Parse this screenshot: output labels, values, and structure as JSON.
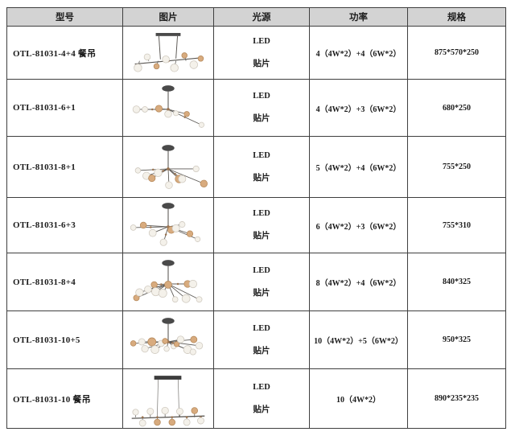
{
  "header": {
    "columns": [
      "型号",
      "图片",
      "光源",
      "功率",
      "规格"
    ]
  },
  "rows": [
    {
      "model": "OTL-81031-4+4 餐吊",
      "image": {
        "kind": "linear-top-bar",
        "globes": 8,
        "alt": "chandelier-linear-8-globes"
      },
      "light": [
        "LED",
        "贴片"
      ],
      "power": "4（4W*2）+4（6W*2）",
      "spec": "875*570*250"
    },
    {
      "model": "OTL-81031-6+1",
      "image": {
        "kind": "branch",
        "globes": 7,
        "seed": 2,
        "alt": "chandelier-branch-7-globes"
      },
      "light": [
        "LED",
        "贴片"
      ],
      "power": "4（4W*2）+3（6W*2）",
      "spec": "680*250"
    },
    {
      "model": "OTL-81031-8+1",
      "image": {
        "kind": "branch",
        "globes": 9,
        "seed": 5,
        "alt": "chandelier-branch-9-globes"
      },
      "light": [
        "LED",
        "贴片"
      ],
      "power": "5（4W*2）+4（6W*2）",
      "spec": "755*250"
    },
    {
      "model": "OTL-81031-6+3",
      "image": {
        "kind": "branch",
        "globes": 9,
        "seed": 9,
        "alt": "chandelier-branch-9-globes"
      },
      "light": [
        "LED",
        "贴片"
      ],
      "power": "6（4W*2）+3（6W*2）",
      "spec": "755*310"
    },
    {
      "model": "OTL-81031-8+4",
      "image": {
        "kind": "branch",
        "globes": 12,
        "seed": 4,
        "alt": "chandelier-branch-12-globes"
      },
      "light": [
        "LED",
        "贴片"
      ],
      "power": "8（4W*2）+4（6W*2）",
      "spec": "840*325"
    },
    {
      "model": "OTL-81031-10+5",
      "image": {
        "kind": "branch",
        "globes": 15,
        "seed": 7,
        "alt": "chandelier-branch-15-globes"
      },
      "light": [
        "LED",
        "贴片"
      ],
      "power": "10（4W*2）+5（6W*2）",
      "spec": "950*325"
    },
    {
      "model": "OTL-81031-10 餐吊",
      "image": {
        "kind": "linear-double-wire",
        "globes": 10,
        "alt": "chandelier-linear-10-globes"
      },
      "light": [
        "LED",
        "贴片"
      ],
      "power": "10（4W*2）",
      "spec": "890*235*235"
    }
  ],
  "colors": {
    "header_bg": "#d3d3d3",
    "border": "#3f3f3f",
    "metal_dark": "#4a4a4a",
    "globe_white": "#f4f1ea",
    "globe_amber": "#d8ab7e",
    "joint_copper": "#9a7350"
  }
}
